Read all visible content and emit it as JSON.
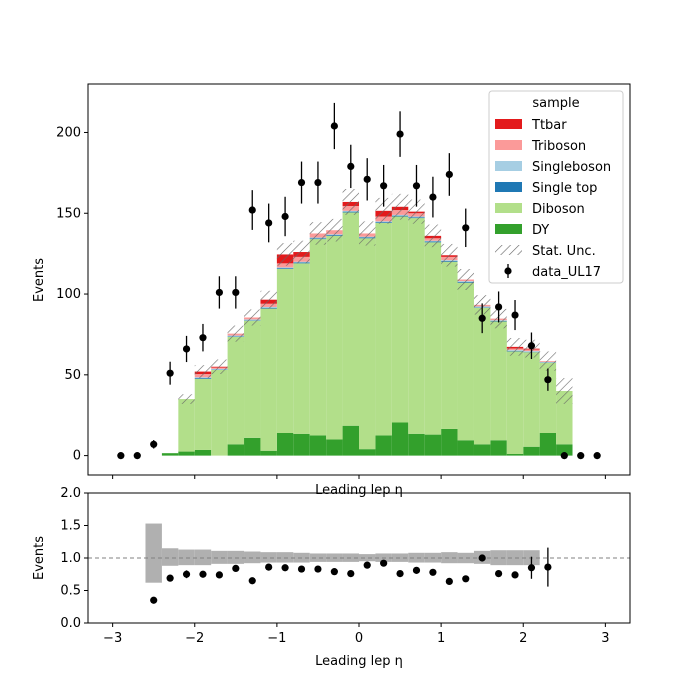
{
  "chart_data": [
    {
      "type": "bar",
      "stacked": true,
      "xlabel": "Leading lep η",
      "ylabel": "Events",
      "xlim": [
        -3.3,
        3.3
      ],
      "ylim": [
        -12,
        230
      ],
      "yticks": [
        0,
        50,
        100,
        150,
        200
      ],
      "xticks": [
        -3,
        -2,
        -1,
        0,
        1,
        2,
        3
      ],
      "legend_title": "sample",
      "legend_position": "top-right",
      "bin_edges": [
        -3.0,
        -2.8,
        -2.6,
        -2.4,
        -2.2,
        -2.0,
        -1.8,
        -1.6,
        -1.4,
        -1.2,
        -1.0,
        -0.8,
        -0.6,
        -0.4,
        -0.2,
        0.0,
        0.2,
        0.4,
        0.6,
        0.8,
        1.0,
        1.2,
        1.4,
        1.6,
        1.8,
        2.0,
        2.2,
        2.4,
        2.6,
        2.8,
        3.0
      ],
      "series": [
        {
          "name": "DY",
          "color": "#33a02c",
          "values": [
            0,
            0,
            0,
            1.5,
            2.5,
            3.5,
            0,
            7,
            11,
            3,
            14,
            13.5,
            12.5,
            10,
            18.5,
            4,
            12.5,
            20.5,
            13.5,
            13,
            16.5,
            9.5,
            7,
            9.5,
            1,
            5.5,
            14,
            7,
            0,
            0
          ]
        },
        {
          "name": "Diboson",
          "color": "#b2df8a",
          "values": [
            0,
            0,
            0,
            0,
            32.5,
            44,
            53,
            66.5,
            72.5,
            88,
            101.5,
            105.5,
            121.5,
            126,
            132,
            130.5,
            131.5,
            127.5,
            133.5,
            119,
            103.5,
            97.5,
            84.5,
            73.5,
            63.5,
            58.5,
            43.5,
            33,
            0,
            0
          ]
        },
        {
          "name": "Single top",
          "color": "#1f78b4",
          "values": [
            0,
            0,
            0,
            0,
            0,
            0.5,
            0.2,
            0.3,
            0.3,
            0.5,
            0.5,
            0.5,
            0.5,
            0.5,
            0.5,
            0.5,
            0.5,
            0.5,
            0.5,
            0.5,
            0.5,
            0.5,
            0.3,
            0.3,
            0.3,
            0.2,
            0.2,
            0,
            0,
            0
          ]
        },
        {
          "name": "Singleboson",
          "color": "#a6cee3",
          "values": [
            0,
            0,
            0,
            0,
            0,
            0.5,
            0.5,
            0.5,
            0.5,
            0.5,
            0.5,
            0.5,
            0.5,
            0.5,
            0.5,
            0.5,
            0.5,
            0.5,
            0.5,
            0.5,
            0.5,
            0.5,
            0.5,
            0.5,
            0.5,
            0.5,
            0.3,
            0,
            0,
            0
          ]
        },
        {
          "name": "Triboson",
          "color": "#fb9a99",
          "values": [
            0,
            0,
            0,
            0,
            0,
            2,
            0.8,
            1.2,
            1.2,
            2,
            2.5,
            3,
            2.5,
            2.5,
            3,
            2,
            3,
            3,
            2,
            1.5,
            2,
            1,
            1,
            1,
            1,
            1,
            0.5,
            0,
            0,
            0
          ]
        },
        {
          "name": "Ttbar",
          "color": "#e31a1c",
          "values": [
            0,
            0,
            0,
            0,
            0,
            1.5,
            0.5,
            0,
            0,
            2.5,
            5.5,
            3,
            0,
            0,
            2.5,
            0,
            3.5,
            2,
            1,
            1.5,
            1,
            0,
            0,
            0,
            1,
            0.5,
            0,
            0,
            0,
            0
          ]
        }
      ],
      "stat_unc": [
        0,
        0,
        0,
        0,
        3,
        4,
        4.5,
        5,
        5,
        5.5,
        7,
        7,
        7,
        7,
        8,
        7.5,
        8,
        8,
        7.5,
        7,
        7,
        6.5,
        6,
        6,
        5.5,
        5.5,
        6,
        8,
        0,
        0
      ],
      "stat_unc_label": "Stat. Unc.",
      "data": {
        "name": "data_UL17",
        "x": [
          -2.9,
          -2.7,
          -2.5,
          -2.3,
          -2.1,
          -1.9,
          -1.7,
          -1.5,
          -1.3,
          -1.1,
          -0.9,
          -0.7,
          -0.5,
          -0.3,
          -0.1,
          0.1,
          0.3,
          0.5,
          0.7,
          0.9,
          1.1,
          1.3,
          1.5,
          1.7,
          1.9,
          2.1,
          2.3,
          2.5,
          2.7,
          2.9
        ],
        "y": [
          0,
          0,
          7,
          51,
          66,
          73,
          101,
          101,
          152,
          144,
          148,
          169,
          169,
          204,
          179,
          171,
          167,
          199,
          167,
          160,
          174,
          141,
          85,
          92,
          87,
          68,
          47,
          0,
          0,
          0
        ],
        "err": [
          0,
          0,
          2.6,
          7.1,
          8.1,
          8.5,
          10,
          10,
          12.3,
          12,
          12.2,
          13,
          13,
          14.3,
          13.4,
          13.1,
          12.9,
          14.1,
          12.9,
          12.6,
          13.2,
          11.9,
          9.2,
          9.6,
          9.3,
          8.2,
          6.9,
          0,
          0,
          0
        ]
      }
    },
    {
      "type": "scatter",
      "xlabel": "Leading lep η",
      "ylabel": "Events",
      "xlim": [
        -3.3,
        3.3
      ],
      "ylim": [
        0.0,
        2.0
      ],
      "yticks": [
        "0.0",
        "0.5",
        "1.0",
        "1.5",
        "2.0"
      ],
      "xticks": [
        "−3",
        "−2",
        "−1",
        "0",
        "1",
        "2",
        "3"
      ],
      "reference_line": 1.0,
      "unc_band": {
        "bin_edges": [
          -2.6,
          -2.4,
          -2.2,
          -2.0,
          -1.8,
          -1.6,
          -1.4,
          -1.2,
          -1.0,
          -0.8,
          -0.6,
          -0.4,
          -0.2,
          0.0,
          0.2,
          0.4,
          0.6,
          0.8,
          1.0,
          1.2,
          1.4,
          1.6,
          1.8,
          2.0,
          2.2
        ],
        "low": [
          0.62,
          0.88,
          0.89,
          0.89,
          0.91,
          0.91,
          0.92,
          0.93,
          0.93,
          0.93,
          0.94,
          0.94,
          0.94,
          0.95,
          0.94,
          0.94,
          0.93,
          0.93,
          0.92,
          0.92,
          0.91,
          0.89,
          0.89,
          0.89
        ],
        "high": [
          1.53,
          1.15,
          1.13,
          1.13,
          1.11,
          1.11,
          1.1,
          1.09,
          1.09,
          1.08,
          1.07,
          1.07,
          1.07,
          1.06,
          1.07,
          1.07,
          1.08,
          1.08,
          1.09,
          1.08,
          1.11,
          1.12,
          1.12,
          1.12
        ]
      },
      "points": {
        "x": [
          -2.5,
          -2.3,
          -2.1,
          -1.9,
          -1.7,
          -1.5,
          -1.3,
          -1.1,
          -0.9,
          -0.7,
          -0.5,
          -0.3,
          -0.1,
          0.1,
          0.3,
          0.5,
          0.7,
          0.9,
          1.1,
          1.3,
          1.5,
          1.7,
          1.9,
          2.1,
          2.3
        ],
        "y": [
          0.35,
          0.69,
          0.75,
          0.75,
          0.74,
          0.84,
          0.65,
          0.86,
          0.85,
          0.83,
          0.83,
          0.79,
          0.76,
          0.89,
          0.92,
          0.76,
          0.81,
          0.78,
          0.64,
          0.68,
          1.0,
          0.76,
          0.74,
          0.85,
          0.86
        ],
        "err": [
          0,
          0,
          0.06,
          0,
          0,
          0,
          0,
          0,
          0,
          0,
          0,
          0,
          0,
          0,
          0,
          0,
          0,
          0,
          0,
          0,
          0,
          0,
          0,
          0.17,
          0.3
        ]
      }
    }
  ]
}
